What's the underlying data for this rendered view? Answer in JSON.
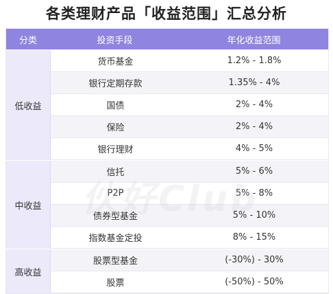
{
  "title": "各类理财产品「收益范围」汇总分析",
  "header": {
    "category": "分类",
    "method": "投资手段",
    "yield": "年化收益范围"
  },
  "groups": [
    {
      "category": "低收益",
      "rows": [
        {
          "method": "货币基金",
          "yield": "1.2% - 1.8%"
        },
        {
          "method": "银行定期存款",
          "yield": "1.35% - 4%"
        },
        {
          "method": "国债",
          "yield": "2% - 4%"
        },
        {
          "method": "保险",
          "yield": "2% - 4%"
        },
        {
          "method": "银行理财",
          "yield": "4% - 5%"
        }
      ]
    },
    {
      "category": "中收益",
      "rows": [
        {
          "method": "信托",
          "yield": "5% - 6%"
        },
        {
          "method": "P2P",
          "yield": "5% - 8%"
        },
        {
          "method": "债券型基金",
          "yield": "5% - 10%"
        },
        {
          "method": "指数基金定投",
          "yield": "8% - 15%"
        }
      ]
    },
    {
      "category": "高收益",
      "rows": [
        {
          "method": "股票型基金",
          "yield": "(-30%)  - 30%"
        },
        {
          "method": "股票",
          "yield": "(-50%)  - 50%"
        }
      ]
    }
  ],
  "watermark": "伙好Club"
}
